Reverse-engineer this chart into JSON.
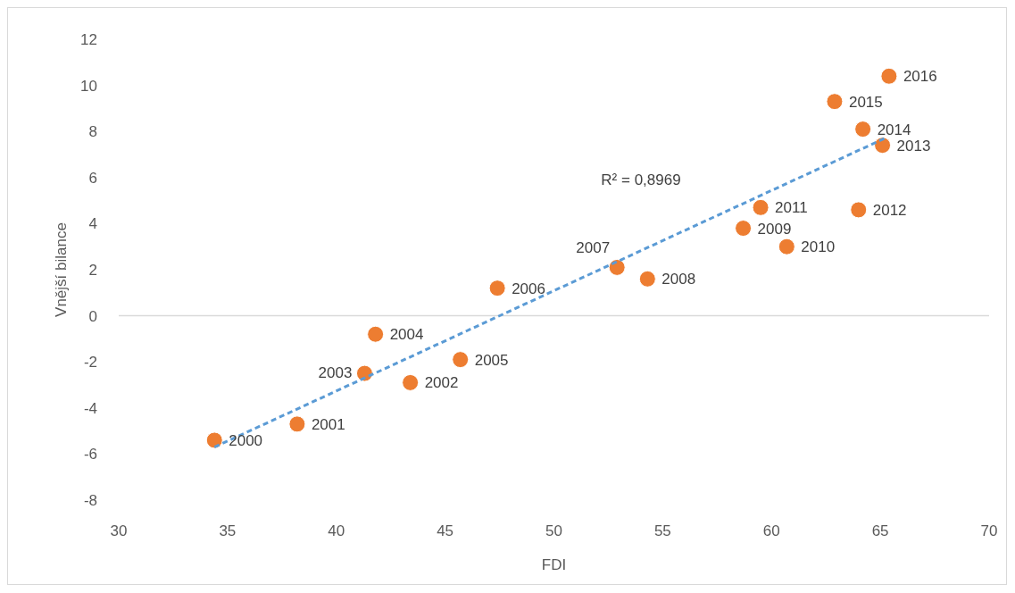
{
  "chart_data": {
    "type": "scatter",
    "xlabel": "FDI",
    "ylabel": "Vnější bilance",
    "xlim": [
      30,
      70
    ],
    "xticks": [
      30,
      35,
      40,
      45,
      50,
      55,
      60,
      65,
      70
    ],
    "ylim": [
      -8,
      12
    ],
    "yticks": [
      -8,
      -6,
      -4,
      -2,
      0,
      2,
      4,
      6,
      8,
      10,
      12
    ],
    "marker": "circle",
    "series": [
      {
        "color": "#ed7d31",
        "x": [
          34.4,
          38.2,
          43.4,
          41.3,
          41.8,
          45.7,
          47.4,
          52.9,
          54.3,
          58.7,
          60.7,
          59.5,
          64.0,
          65.1,
          64.2,
          62.9,
          65.4
        ],
        "values": [
          -5.4,
          -4.7,
          -2.9,
          -2.5,
          -0.8,
          -1.9,
          1.2,
          2.1,
          1.6,
          3.8,
          3.0,
          4.7,
          4.6,
          7.4,
          8.1,
          9.3,
          10.4
        ]
      },
      {
        "type": "line",
        "marker": "none",
        "color": "#5b9bd5",
        "line_style": "dashed",
        "x": [
          34.4,
          65.2
        ],
        "values": [
          -5.7,
          7.7
        ]
      }
    ],
    "annotations": [
      {
        "text": "2000",
        "x": 34.4,
        "y": -5.4
      },
      {
        "text": "2001",
        "x": 38.2,
        "y": -4.7
      },
      {
        "text": "2002",
        "x": 43.4,
        "y": -2.9
      },
      {
        "text": "2003",
        "x": 41.3,
        "y": -2.5
      },
      {
        "text": "2004",
        "x": 41.8,
        "y": -0.8
      },
      {
        "text": "2005",
        "x": 45.7,
        "y": -1.9
      },
      {
        "text": "2006",
        "x": 47.4,
        "y": 1.2
      },
      {
        "text": "2007",
        "x": 52.9,
        "y": 2.1
      },
      {
        "text": "2008",
        "x": 54.3,
        "y": 1.6
      },
      {
        "text": "2009",
        "x": 58.7,
        "y": 3.8
      },
      {
        "text": "2010",
        "x": 60.7,
        "y": 3.0
      },
      {
        "text": "2011",
        "x": 59.5,
        "y": 4.7
      },
      {
        "text": "2012",
        "x": 64.0,
        "y": 4.6
      },
      {
        "text": "2013",
        "x": 65.1,
        "y": 7.4
      },
      {
        "text": "2014",
        "x": 64.2,
        "y": 8.1
      },
      {
        "text": "2015",
        "x": 62.9,
        "y": 9.3
      },
      {
        "text": "2016",
        "x": 65.4,
        "y": 10.4
      },
      "R² = 0,8969"
    ]
  }
}
